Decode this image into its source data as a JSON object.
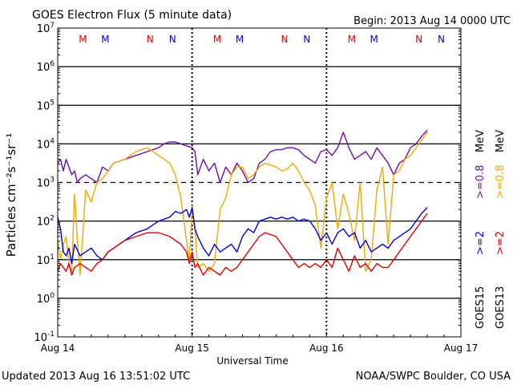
{
  "chart_data": {
    "type": "line",
    "title": "GOES Electron Flux (5 minute data)",
    "begin_label": "Begin: 2013 Aug 14 0000 UTC",
    "xlabel": "Universal Time",
    "ylabel": "Particles cm⁻²s⁻¹sr⁻¹",
    "updated": "Updated 2013 Aug 16 13:51:02 UTC",
    "credit": "NOAA/SWPC Boulder, CO USA",
    "x_unit": "hours since 2013 Aug 14 00:00 UTC",
    "xlim": [
      0,
      72
    ],
    "ylim_log10": [
      -1,
      7
    ],
    "x_ticks": [
      {
        "label": "Aug 14",
        "value": 0
      },
      {
        "label": "Aug 15",
        "value": 24
      },
      {
        "label": "Aug 16",
        "value": 48
      },
      {
        "label": "Aug 17",
        "value": 72
      }
    ],
    "y_ticks": [
      {
        "base": "10",
        "exp": "7",
        "value": 7
      },
      {
        "base": "10",
        "exp": "6",
        "value": 6
      },
      {
        "base": "10",
        "exp": "5",
        "value": 5
      },
      {
        "base": "10",
        "exp": "4",
        "value": 4
      },
      {
        "base": "10",
        "exp": "3",
        "value": 3
      },
      {
        "base": "10",
        "exp": "2",
        "value": 2
      },
      {
        "base": "10",
        "exp": "1",
        "value": 1
      },
      {
        "base": "10",
        "exp": "0",
        "value": 0
      },
      {
        "base": "10",
        "exp": "-1",
        "value": -1
      }
    ],
    "hlines_solid": [
      6,
      5,
      4,
      2,
      1,
      0
    ],
    "hlines_dashed": [
      3
    ],
    "day_markers": [
      24,
      48
    ],
    "mn_markers": [
      {
        "label": "M",
        "hour": 4.5,
        "color": "#e00000"
      },
      {
        "label": "M",
        "hour": 8.5,
        "color": "#0000e0"
      },
      {
        "label": "N",
        "hour": 16.5,
        "color": "#e00000"
      },
      {
        "label": "N",
        "hour": 20.5,
        "color": "#0000e0"
      },
      {
        "label": "M",
        "hour": 28.5,
        "color": "#e00000"
      },
      {
        "label": "M",
        "hour": 32.5,
        "color": "#0000e0"
      },
      {
        "label": "N",
        "hour": 40.5,
        "color": "#e00000"
      },
      {
        "label": "N",
        "hour": 44.5,
        "color": "#0000e0"
      },
      {
        "label": "M",
        "hour": 52.5,
        "color": "#e00000"
      },
      {
        "label": "M",
        "hour": 56.5,
        "color": "#0000e0"
      },
      {
        "label": "N",
        "hour": 64.5,
        "color": "#e00000"
      },
      {
        "label": "N",
        "hour": 68.5,
        "color": "#0000e0"
      }
    ],
    "legend": {
      "goes15": "GOES15",
      "goes13": "GOES13",
      "mev08": "MeV",
      "purple_label": ">=0.8",
      "orange_label": ">=0.8",
      "blue_label": ">=2",
      "red_label": ">=2"
    },
    "series": [
      {
        "name": "GOES15 >=0.8 MeV",
        "color": "#6a0dad",
        "x": [
          0,
          0.5,
          1,
          1.5,
          2,
          2.5,
          3,
          3.5,
          4,
          5,
          6,
          7,
          8,
          9,
          10,
          12,
          14,
          16,
          18,
          19,
          20,
          21,
          22,
          23,
          24,
          24.5,
          25,
          26,
          27,
          28,
          29,
          30,
          31,
          32,
          33,
          34,
          35,
          36,
          37,
          38,
          39,
          40,
          41,
          42,
          43,
          44,
          45,
          46,
          47,
          48,
          49,
          50,
          51,
          52,
          53,
          54,
          55,
          56,
          57,
          58,
          59,
          60,
          61,
          62,
          63,
          64,
          65,
          66
        ],
        "y_log10": [
          3.5,
          3.6,
          3.3,
          3.6,
          3.4,
          3.2,
          3.3,
          3.0,
          3.1,
          3.2,
          3.1,
          3.0,
          3.4,
          3.3,
          3.5,
          3.6,
          3.7,
          3.8,
          3.9,
          4.0,
          4.05,
          4.05,
          4.0,
          3.95,
          3.9,
          3.8,
          3.2,
          3.6,
          3.3,
          3.5,
          3.0,
          3.4,
          3.2,
          3.5,
          3.3,
          3.0,
          3.1,
          3.5,
          3.6,
          3.8,
          3.85,
          3.85,
          3.9,
          3.9,
          3.85,
          3.7,
          3.6,
          3.5,
          3.8,
          3.85,
          3.7,
          3.9,
          4.3,
          3.9,
          3.6,
          3.7,
          3.8,
          3.6,
          3.9,
          3.7,
          3.5,
          3.2,
          3.5,
          3.6,
          3.9,
          4.0,
          4.2,
          4.35
        ]
      },
      {
        "name": "GOES13 >=0.8 MeV",
        "color": "#f2a900",
        "x": [
          0,
          0.5,
          1,
          1.5,
          2,
          2.5,
          3,
          3.5,
          4,
          5,
          6,
          7,
          8,
          9,
          10,
          12,
          14,
          16,
          18,
          20,
          21,
          22,
          23,
          23.5,
          24,
          24.5,
          25,
          26,
          27,
          28,
          29,
          30,
          31,
          32,
          33,
          34,
          35,
          36,
          37,
          38,
          39,
          40,
          41,
          42,
          43,
          44,
          45,
          46,
          47,
          48,
          49,
          50,
          51,
          52,
          53,
          54,
          55,
          56,
          57,
          58,
          59,
          60,
          61,
          62,
          63,
          64,
          65,
          66
        ],
        "y_log10": [
          1.5,
          1.0,
          1.4,
          1.6,
          0.9,
          0.7,
          2.7,
          1.5,
          0.6,
          2.8,
          2.5,
          3.0,
          3.1,
          3.3,
          3.5,
          3.6,
          3.8,
          3.9,
          3.7,
          3.5,
          3.2,
          2.6,
          1.5,
          0.9,
          2.4,
          1.8,
          0.8,
          0.9,
          0.7,
          0.9,
          2.3,
          2.6,
          3.2,
          3.4,
          3.4,
          3.1,
          3.2,
          3.4,
          3.5,
          3.45,
          3.4,
          3.3,
          3.35,
          3.5,
          3.3,
          3.0,
          2.8,
          2.4,
          1.3,
          2.6,
          3.0,
          1.8,
          2.7,
          2.2,
          1.5,
          3.0,
          0.7,
          1.0,
          2.8,
          3.4,
          1.4,
          3.2,
          3.3,
          3.6,
          3.7,
          3.9,
          4.1,
          4.3
        ]
      },
      {
        "name": "GOES15 >=2 MeV",
        "color": "#0000e0",
        "x": [
          0,
          0.5,
          1,
          1.5,
          2,
          2.5,
          3,
          4,
          5,
          6,
          7,
          8,
          9,
          10,
          12,
          14,
          16,
          18,
          20,
          21,
          22,
          23,
          23.5,
          24,
          24.5,
          25,
          26,
          27,
          28,
          29,
          30,
          31,
          32,
          33,
          34,
          35,
          36,
          37,
          38,
          39,
          40,
          41,
          42,
          43,
          44,
          45,
          46,
          47,
          48,
          49,
          50,
          51,
          52,
          53,
          54,
          55,
          56,
          57,
          58,
          59,
          60,
          61,
          62,
          63,
          64,
          65,
          66
        ],
        "y_log10": [
          2.1,
          1.8,
          1.2,
          1.1,
          1.3,
          0.9,
          1.4,
          1.1,
          1.2,
          1.3,
          1.1,
          1.0,
          1.2,
          1.3,
          1.5,
          1.7,
          1.8,
          2.0,
          2.1,
          2.25,
          2.2,
          2.3,
          2.1,
          2.35,
          1.8,
          1.6,
          1.3,
          1.1,
          1.4,
          1.2,
          1.3,
          1.4,
          1.2,
          1.6,
          1.8,
          1.7,
          2.0,
          2.05,
          2.1,
          2.05,
          2.1,
          2.05,
          2.1,
          2.0,
          2.05,
          2.0,
          1.8,
          1.5,
          1.7,
          1.4,
          1.7,
          1.8,
          1.6,
          1.7,
          1.3,
          1.5,
          1.2,
          1.3,
          1.4,
          1.3,
          1.5,
          1.6,
          1.7,
          1.8,
          2.0,
          2.2,
          2.35
        ]
      },
      {
        "name": "GOES13 >=2 MeV",
        "color": "#e00000",
        "x": [
          0,
          0.5,
          1,
          1.5,
          2,
          2.5,
          3,
          4,
          5,
          6,
          7,
          8,
          9,
          10,
          12,
          14,
          16,
          18,
          20,
          21,
          22,
          23,
          23.5,
          24,
          24.5,
          25,
          26,
          27,
          28,
          29,
          30,
          31,
          32,
          33,
          34,
          35,
          36,
          37,
          38,
          39,
          40,
          41,
          42,
          43,
          44,
          45,
          46,
          47,
          48,
          49,
          50,
          51,
          52,
          53,
          54,
          55,
          56,
          57,
          58,
          59,
          60,
          61,
          62,
          63,
          64,
          65,
          66
        ],
        "y_log10": [
          0.7,
          0.9,
          0.8,
          0.7,
          0.9,
          0.6,
          0.8,
          0.9,
          0.8,
          0.7,
          0.9,
          1.0,
          1.2,
          1.3,
          1.5,
          1.6,
          1.7,
          1.7,
          1.6,
          1.5,
          1.4,
          1.2,
          0.9,
          1.2,
          0.8,
          0.9,
          0.6,
          0.8,
          0.7,
          0.6,
          0.8,
          0.7,
          0.8,
          1.0,
          1.2,
          1.4,
          1.6,
          1.7,
          1.65,
          1.6,
          1.4,
          1.2,
          1.0,
          0.8,
          0.9,
          0.8,
          0.9,
          0.8,
          1.0,
          0.8,
          1.3,
          1.0,
          0.7,
          1.1,
          0.8,
          0.9,
          0.7,
          0.9,
          0.8,
          0.8,
          1.0,
          1.2,
          1.4,
          1.6,
          1.8,
          2.0,
          2.2
        ]
      }
    ]
  }
}
